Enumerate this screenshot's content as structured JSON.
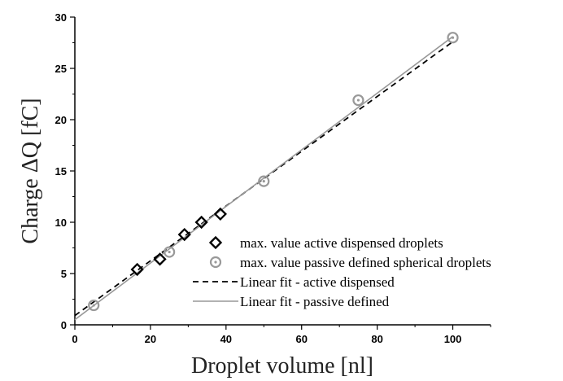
{
  "chart_data": {
    "type": "scatter",
    "title": "",
    "xlabel": "Droplet volume [nl]",
    "ylabel": "Charge ΔQ [fC]",
    "xlim": [
      0,
      110
    ],
    "ylim": [
      0,
      30
    ],
    "x_ticks": [
      0,
      20,
      40,
      60,
      80,
      100
    ],
    "y_ticks": [
      0,
      5,
      10,
      15,
      20,
      25,
      30
    ],
    "grid": false,
    "legend_position": "lower-right",
    "series": [
      {
        "name": "max. value active dispensed droplets",
        "kind": "scatter",
        "marker": "diamond",
        "color": "#000000",
        "points": [
          [
            16.5,
            5.4
          ],
          [
            22.5,
            6.4
          ],
          [
            29,
            8.8
          ],
          [
            33.5,
            10.0
          ],
          [
            38.5,
            10.8
          ]
        ]
      },
      {
        "name": "max. value passive defined spherical droplets",
        "kind": "scatter",
        "marker": "circle-dot",
        "color": "#999999",
        "points": [
          [
            5,
            1.9
          ],
          [
            25,
            7.1
          ],
          [
            50,
            14.0
          ],
          [
            75,
            21.9
          ],
          [
            100,
            28.0
          ]
        ]
      },
      {
        "name": "Linear fit - active dispensed",
        "kind": "line",
        "style": "dashed",
        "color": "#000000",
        "points": [
          [
            0,
            0.9
          ],
          [
            100,
            27.6
          ]
        ]
      },
      {
        "name": "Linear fit - passive defined",
        "kind": "line",
        "style": "solid",
        "color": "#999999",
        "points": [
          [
            0,
            0.5
          ],
          [
            100,
            28.1
          ]
        ]
      }
    ]
  }
}
